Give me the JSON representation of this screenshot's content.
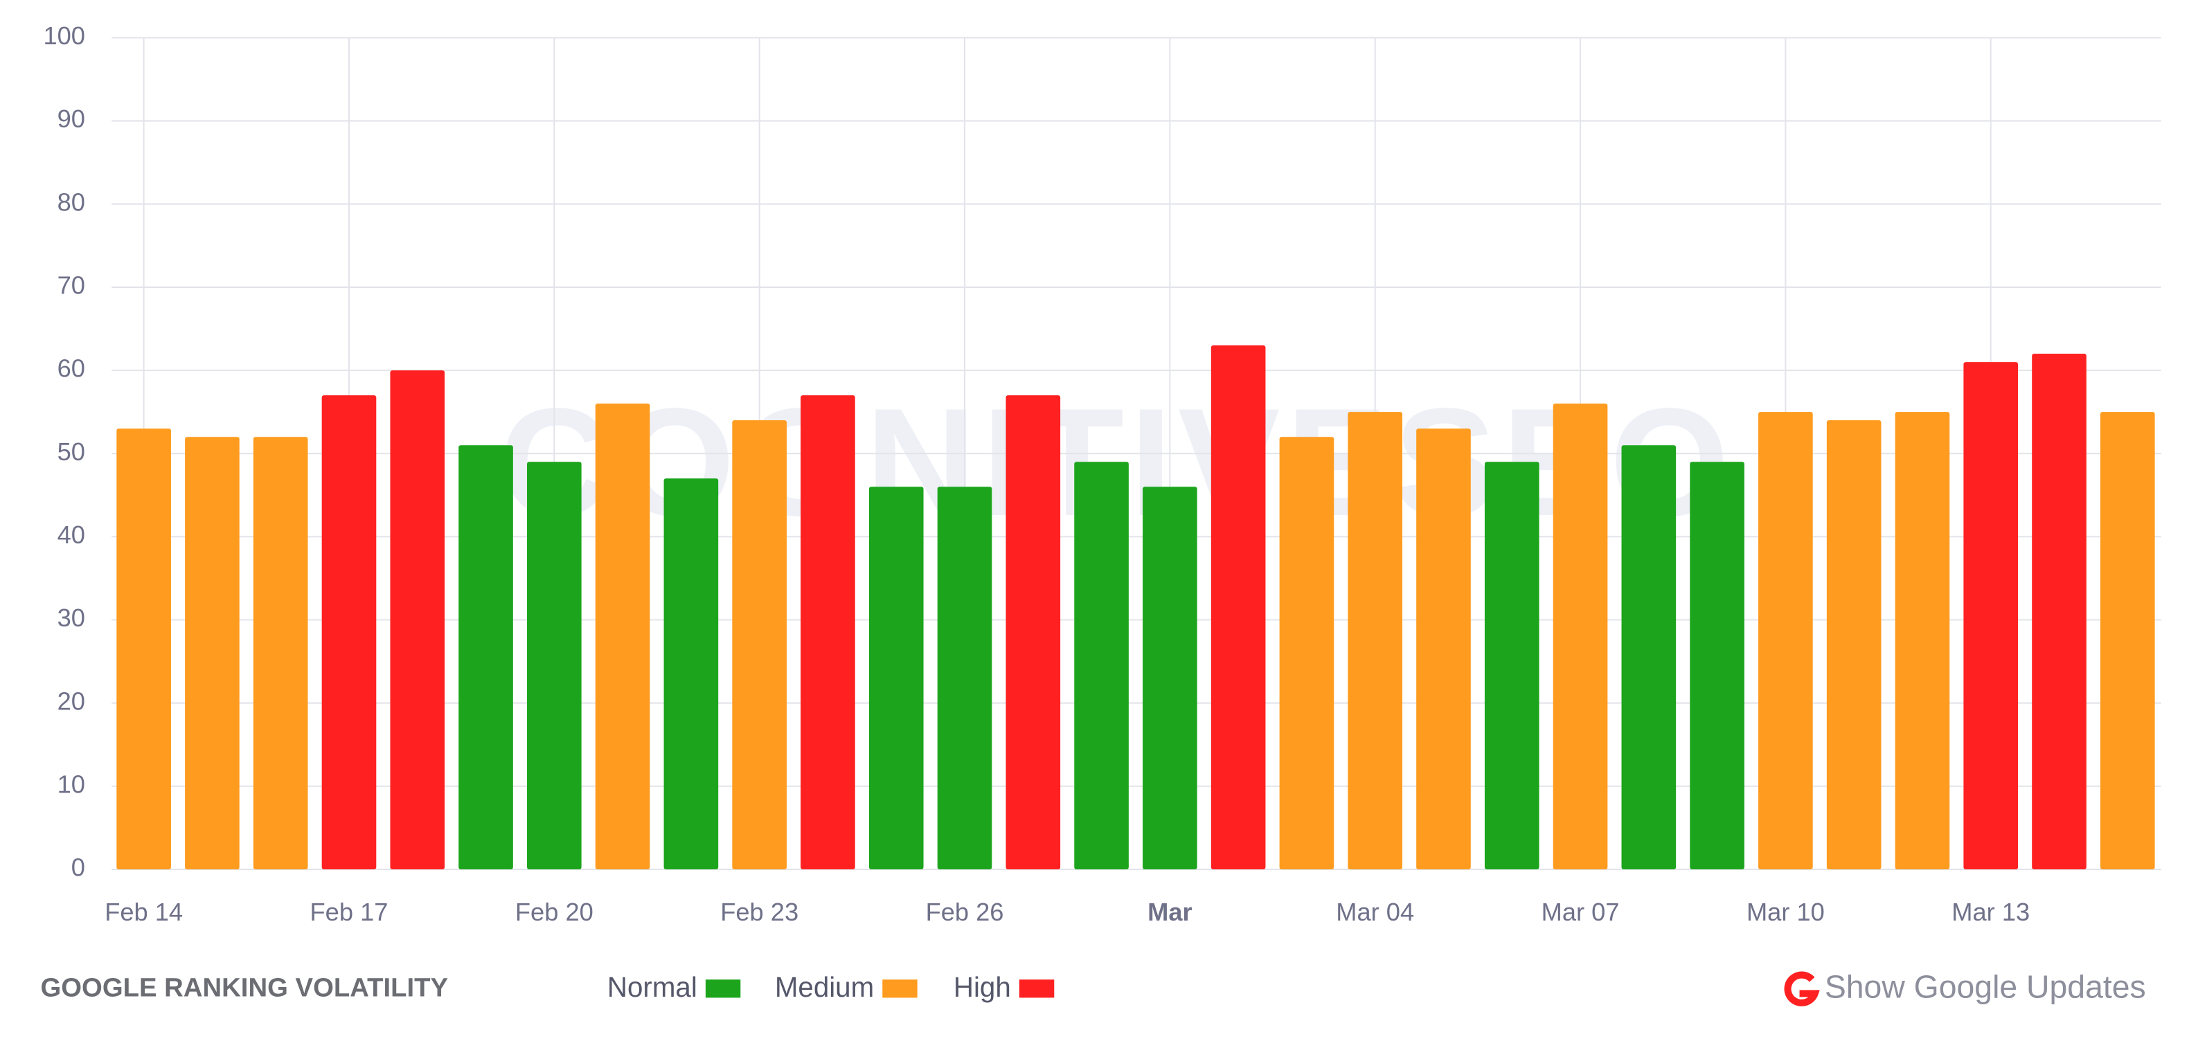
{
  "chart_data": {
    "type": "bar",
    "title": "GOOGLE RANKING VOLATILITY",
    "watermark": "COGNITIVESEO",
    "categories": [
      "Feb 14",
      null,
      null,
      "Feb 17",
      null,
      null,
      "Feb 20",
      null,
      null,
      "Feb 23",
      null,
      null,
      "Feb 26",
      null,
      null,
      "Mar",
      null,
      null,
      "Mar 04",
      null,
      null,
      "Mar 07",
      null,
      null,
      "Mar 10",
      null,
      null,
      "Mar 13",
      null,
      null
    ],
    "values": [
      53,
      52,
      52,
      57,
      60,
      51,
      49,
      56,
      47,
      54,
      57,
      46,
      46,
      57,
      49,
      46,
      63,
      52,
      55,
      53,
      49,
      56,
      51,
      49,
      55,
      54,
      55,
      61,
      62,
      55
    ],
    "colors": [
      "#ff9b1e",
      "#ff9b1e",
      "#ff9b1e",
      "#ff2121",
      "#ff2121",
      "#1ca51c",
      "#1ca51c",
      "#ff9b1e",
      "#1ca51c",
      "#ff9b1e",
      "#ff2121",
      "#1ca51c",
      "#1ca51c",
      "#ff2121",
      "#1ca51c",
      "#1ca51c",
      "#ff2121",
      "#ff9b1e",
      "#ff9b1e",
      "#ff9b1e",
      "#1ca51c",
      "#ff9b1e",
      "#1ca51c",
      "#1ca51c",
      "#ff9b1e",
      "#ff9b1e",
      "#ff9b1e",
      "#ff2121",
      "#ff2121",
      "#ff9b1e"
    ],
    "legend": [
      {
        "name": "Normal",
        "color": "#1ca51c"
      },
      {
        "name": "Medium",
        "color": "#ff9b1e"
      },
      {
        "name": "High",
        "color": "#ff2121"
      }
    ],
    "ylim": [
      0,
      100
    ],
    "yticks": [
      0,
      10,
      20,
      30,
      40,
      50,
      60,
      70,
      80,
      90,
      100
    ],
    "grid": true
  },
  "button": "Show Google Updates"
}
